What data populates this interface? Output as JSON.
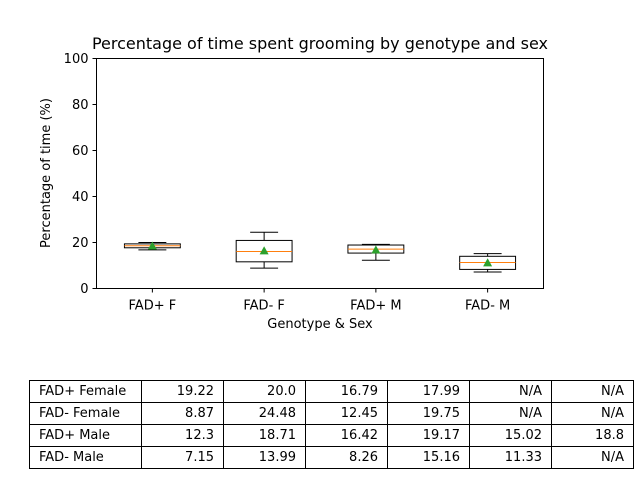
{
  "chart_data": {
    "type": "box",
    "title": "Percentage of time spent grooming by genotype and sex",
    "xlabel": "Genotype & Sex",
    "ylabel": "Percentage of time (%)",
    "ylim": [
      0,
      100
    ],
    "yticks": [
      0,
      20,
      40,
      60,
      80,
      100
    ],
    "categories": [
      "FAD+ F",
      "FAD- F",
      "FAD+ M",
      "FAD- M"
    ],
    "boxes": [
      {
        "category": "FAD+ F",
        "whisker_low": 16.79,
        "q1": 17.7,
        "median": 18.6,
        "q3": 19.4,
        "whisker_high": 20.0,
        "mean": 18.5
      },
      {
        "category": "FAD- F",
        "whisker_low": 8.87,
        "q1": 11.6,
        "median": 16.1,
        "q3": 20.9,
        "whisker_high": 24.48,
        "mean": 16.4
      },
      {
        "category": "FAD+ M",
        "whisker_low": 12.3,
        "q1": 15.4,
        "median": 17.1,
        "q3": 18.9,
        "whisker_high": 19.17,
        "mean": 16.8
      },
      {
        "category": "FAD- M",
        "whisker_low": 7.15,
        "q1": 8.3,
        "median": 11.3,
        "q3": 14.0,
        "whisker_high": 15.16,
        "mean": 11.2
      }
    ],
    "colors": {
      "median": "#ff7f0e",
      "mean": "#2ca02c",
      "box": "#000000"
    },
    "grid": false,
    "table": {
      "rows": [
        {
          "label": "FAD+ Female",
          "values": [
            "19.22",
            "20.0",
            "16.79",
            "17.99",
            "N/A",
            "N/A"
          ]
        },
        {
          "label": "FAD- Female",
          "values": [
            "8.87",
            "24.48",
            "12.45",
            "19.75",
            "N/A",
            "N/A"
          ]
        },
        {
          "label": "FAD+ Male",
          "values": [
            "12.3",
            "18.71",
            "16.42",
            "19.17",
            "15.02",
            "18.8"
          ]
        },
        {
          "label": "FAD- Male",
          "values": [
            "7.15",
            "13.99",
            "8.26",
            "15.16",
            "11.33",
            "N/A"
          ]
        }
      ]
    }
  }
}
